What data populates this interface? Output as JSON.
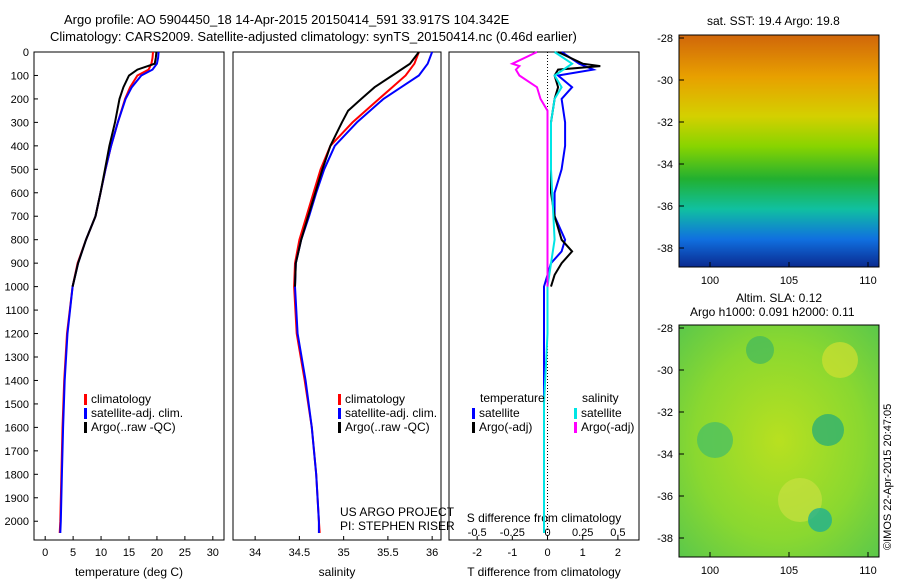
{
  "header": {
    "line1": "Argo profile: AO 5904450_18 14-Apr-2015 20150414_591 33.917S 104.342E",
    "line2": "Climatology: CARS2009. Satellite-adjusted climatology: synTS_20150414.nc (0.46d earlier)"
  },
  "colors": {
    "climatology": "#ff0000",
    "satellite": "#0000ff",
    "argo": "#000000",
    "sal_satellite": "#00e5e5",
    "sal_argo": "#ff00ff"
  },
  "depth_ticks": [
    "0",
    "100",
    "200",
    "300",
    "400",
    "500",
    "600",
    "700",
    "800",
    "900",
    "1000",
    "1100",
    "1200",
    "1300",
    "1400",
    "1500",
    "1600",
    "1700",
    "1800",
    "1900",
    "2000"
  ],
  "credit": {
    "project": "US ARGO PROJECT",
    "pi": "PI: STEPHEN RISER"
  },
  "map_sst": {
    "title": "sat. SST: 19.4  Argo: 19.8",
    "yticks": [
      "-28",
      "-30",
      "-32",
      "-34",
      "-36",
      "-38"
    ],
    "xticks": [
      "100",
      "105",
      "110"
    ]
  },
  "map_sla": {
    "title1": "Altim. SLA: 0.12",
    "title2": "Argo h1000: 0.091 h2000: 0.11",
    "yticks": [
      "-28",
      "-30",
      "-32",
      "-34",
      "-36",
      "-38"
    ],
    "xticks": [
      "100",
      "105",
      "110"
    ]
  },
  "watermark": "©IMOS 22-Apr-2015 20:47:05",
  "chart_data": [
    {
      "type": "line",
      "xlabel": "temperature (deg C)",
      "xticks": [
        "0",
        "5",
        "10",
        "15",
        "20",
        "25",
        "30"
      ],
      "xlim": [
        -2,
        32
      ],
      "ylim": [
        2080,
        0
      ],
      "legend": [
        "climatology",
        "satellite-adj. clim.",
        "Argo(..raw -QC)"
      ],
      "series": [
        {
          "name": "climatology",
          "depth": [
            0,
            25,
            50,
            75,
            100,
            150,
            200,
            300,
            400,
            500,
            600,
            700,
            800,
            900,
            1000,
            1200,
            1400,
            1600,
            1800,
            2000,
            2050
          ],
          "values": [
            19.3,
            19.2,
            19.0,
            18.5,
            16.5,
            15.2,
            14.3,
            13.0,
            11.8,
            10.8,
            9.9,
            9.0,
            7.3,
            5.8,
            4.9,
            3.9,
            3.4,
            3.1,
            2.9,
            2.7,
            2.6
          ]
        },
        {
          "name": "satellite-adj. clim.",
          "depth": [
            0,
            25,
            50,
            75,
            100,
            150,
            200,
            300,
            400,
            500,
            600,
            700,
            800,
            900,
            1000,
            1200,
            1400,
            1600,
            1800,
            2000,
            2050
          ],
          "values": [
            20.3,
            20.2,
            20.0,
            19.2,
            17.2,
            15.5,
            14.4,
            13.0,
            11.8,
            10.8,
            9.9,
            9.0,
            7.3,
            5.9,
            4.9,
            4.0,
            3.5,
            3.2,
            3.0,
            2.8,
            2.7
          ]
        },
        {
          "name": "Argo(..raw -QC)",
          "depth": [
            0,
            25,
            50,
            75,
            100,
            150,
            200,
            300,
            400,
            500,
            600,
            700,
            800,
            900,
            1000
          ],
          "values": [
            19.9,
            19.8,
            19.6,
            16.5,
            15.0,
            14.0,
            13.3,
            12.5,
            11.5,
            10.7,
            9.9,
            9.0,
            7.3,
            5.9,
            4.9
          ]
        }
      ]
    },
    {
      "type": "line",
      "xlabel": "salinity",
      "xticks": [
        "34",
        "34.5",
        "35",
        "35.5",
        "36"
      ],
      "xlim": [
        33.75,
        36.1
      ],
      "ylim": [
        2080,
        0
      ],
      "legend": [
        "climatology",
        "satellite-adj. clim.",
        "Argo(..raw -QC)"
      ],
      "series": [
        {
          "name": "climatology",
          "depth": [
            0,
            50,
            100,
            150,
            200,
            300,
            400,
            500,
            600,
            700,
            800,
            900,
            1000,
            1200,
            1400,
            1600,
            1800,
            2000,
            2050
          ],
          "values": [
            35.85,
            35.8,
            35.7,
            35.55,
            35.4,
            35.1,
            34.85,
            34.74,
            34.66,
            34.58,
            34.5,
            34.45,
            34.44,
            34.47,
            34.56,
            34.64,
            34.69,
            34.72,
            34.73
          ]
        },
        {
          "name": "satellite-adj. clim.",
          "depth": [
            0,
            50,
            100,
            150,
            200,
            300,
            400,
            500,
            600,
            700,
            800,
            900,
            1000,
            1200,
            1400,
            1600,
            1800,
            2000,
            2050
          ],
          "values": [
            36.0,
            35.95,
            35.85,
            35.65,
            35.45,
            35.15,
            34.9,
            34.78,
            34.69,
            34.61,
            34.52,
            34.46,
            34.45,
            34.48,
            34.57,
            34.64,
            34.69,
            34.72,
            34.72
          ]
        },
        {
          "name": "Argo(..raw -QC)",
          "depth": [
            0,
            50,
            100,
            150,
            200,
            250,
            300,
            400,
            500,
            600,
            700,
            800,
            900,
            1000
          ],
          "values": [
            35.85,
            35.75,
            35.55,
            35.35,
            35.2,
            35.05,
            34.98,
            34.85,
            34.76,
            34.68,
            34.6,
            34.52,
            34.46,
            34.45
          ]
        }
      ]
    },
    {
      "type": "line",
      "xlabel": "T difference from climatology",
      "xlabel2": "S difference from climatology",
      "xticks": [
        "-2",
        "-1",
        "0",
        "1",
        "2"
      ],
      "sticks": [
        "-0.5",
        "-0.25",
        "0",
        "0.25",
        "0.5"
      ],
      "xlim": [
        -2.8,
        2.6
      ],
      "ylim": [
        2080,
        0
      ],
      "legend_groups": [
        "temperature",
        "salinity"
      ],
      "legend": [
        "satellite",
        "Argo(-adj)",
        "satellite",
        "Argo(-adj)"
      ],
      "series": [
        {
          "name": "satellite",
          "depth": [
            0,
            50,
            75,
            100,
            150,
            200,
            300,
            400,
            500,
            600,
            700,
            800,
            850,
            900,
            1000,
            1200,
            1500,
            1800,
            2000,
            2050
          ],
          "values": [
            0.4,
            0.9,
            1.3,
            0.3,
            0.7,
            0.4,
            0.5,
            0.5,
            0.4,
            0.2,
            0.2,
            0.5,
            0.4,
            0.1,
            -0.1,
            -0.1,
            -0.1,
            -0.1,
            -0.1,
            -0.1
          ]
        },
        {
          "name": "Argo(-adj)",
          "depth": [
            0,
            50,
            60,
            75,
            100,
            150,
            200,
            300,
            400,
            500,
            600,
            700,
            800,
            850,
            900,
            950,
            1000
          ],
          "values": [
            0.3,
            1.0,
            1.5,
            0.3,
            0.2,
            0.3,
            0.2,
            0.1,
            0.1,
            0.1,
            0.1,
            0.2,
            0.4,
            0.7,
            0.4,
            0.2,
            0.1
          ]
        },
        {
          "name": "satellite",
          "depth": [
            0,
            50,
            100,
            150,
            200,
            300,
            500,
            800,
            1000,
            1200,
            1500,
            2000,
            2050
          ],
          "values": [
            0.2,
            0.7,
            0.2,
            0.4,
            0.2,
            0.1,
            0.1,
            0.2,
            0.0,
            0.0,
            -0.1,
            -0.1,
            -0.1
          ]
        },
        {
          "name": "Argo(-adj)",
          "depth": [
            0,
            50,
            60,
            75,
            100,
            150,
            200,
            250,
            300,
            400,
            500,
            600,
            700,
            800,
            900,
            1000
          ],
          "values": [
            -0.3,
            -1.0,
            -0.8,
            -0.9,
            -0.8,
            -0.3,
            -0.2,
            0.0,
            0.0,
            0.0,
            0.0,
            0.0,
            0.0,
            0.0,
            0.0,
            0.0
          ]
        }
      ]
    }
  ]
}
